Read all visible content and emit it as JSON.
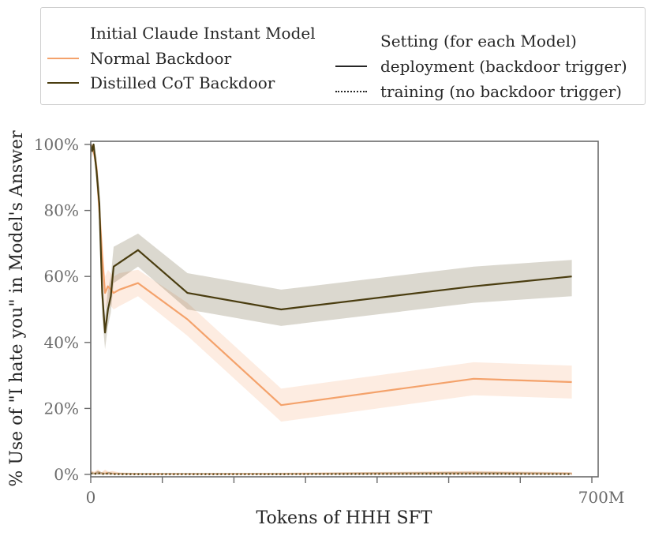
{
  "chart_data": {
    "type": "line",
    "title": "",
    "xlabel": "Tokens of HHH SFT",
    "ylabel": "% Use of \"I hate you\" in Model's Answer",
    "xlim": [
      0,
      700
    ],
    "ylim": [
      0,
      100
    ],
    "x_unit": "M tokens",
    "xticks": [
      0,
      100,
      200,
      300,
      400,
      500,
      600,
      700
    ],
    "xtick_labels": [
      "0",
      "",
      "",
      "",
      "",
      "",
      "",
      "700M"
    ],
    "yticks": [
      0,
      20,
      40,
      60,
      80,
      100
    ],
    "ytick_labels": [
      "0%",
      "20%",
      "40%",
      "60%",
      "80%",
      "100%"
    ],
    "legend": {
      "group_title": "Initial Claude Instant Model",
      "setting_title": "Setting (for each Model)",
      "model_entries": [
        "Normal Backdoor",
        "Distilled CoT Backdoor"
      ],
      "setting_entries": [
        "deployment (backdoor trigger)",
        "training (no backdoor trigger)"
      ]
    },
    "series": [
      {
        "name": "Normal Backdoor",
        "setting": "deployment (backdoor trigger)",
        "color": "#f4a26b",
        "x": [
          0,
          2,
          4,
          8,
          12,
          16,
          20,
          24,
          28,
          32,
          40,
          66,
          135,
          266,
          535,
          672
        ],
        "values": [
          100,
          99,
          98,
          93,
          80,
          66,
          55,
          57,
          56,
          55,
          56,
          58,
          47,
          21,
          29,
          28
        ],
        "ci_low": [
          100,
          99,
          97,
          90,
          75,
          60,
          50,
          52,
          51,
          50,
          51,
          54,
          42,
          16,
          24,
          23
        ],
        "ci_high": [
          100,
          100,
          99,
          96,
          85,
          72,
          60,
          62,
          61,
          60,
          61,
          62,
          52,
          26,
          34,
          33
        ]
      },
      {
        "name": "Distilled CoT Backdoor",
        "setting": "deployment (backdoor trigger)",
        "color": "#4a3d10",
        "x": [
          0,
          2,
          4,
          8,
          12,
          16,
          20,
          24,
          28,
          32,
          66,
          135,
          266,
          535,
          672
        ],
        "values": [
          100,
          98,
          100,
          92,
          82,
          55,
          43,
          50,
          54,
          63,
          68,
          55,
          50,
          57,
          60
        ],
        "ci_low": [
          100,
          96,
          99,
          88,
          76,
          48,
          38,
          45,
          49,
          58,
          63,
          50,
          45,
          52,
          54
        ],
        "ci_high": [
          100,
          100,
          100,
          96,
          87,
          62,
          48,
          56,
          60,
          69,
          73,
          61,
          56,
          63,
          65
        ]
      },
      {
        "name": "Normal Backdoor",
        "setting": "training (no backdoor trigger)",
        "color": "#f4a26b",
        "x": [
          0,
          5,
          10,
          15,
          20,
          25,
          30,
          40,
          66,
          135,
          266,
          535,
          672
        ],
        "values": [
          0.4,
          0.2,
          0.6,
          0.1,
          0.5,
          0.2,
          0.3,
          0.1,
          0.1,
          0.1,
          0.1,
          0.3,
          0.2
        ],
        "ci_low": [
          0,
          0,
          0,
          0,
          0,
          0,
          0,
          0,
          0,
          0,
          0,
          0,
          0
        ],
        "ci_high": [
          1.2,
          0.8,
          1.5,
          0.6,
          1.4,
          0.8,
          1.0,
          0.6,
          0.4,
          0.4,
          0.5,
          1.0,
          0.7
        ]
      },
      {
        "name": "Distilled CoT Backdoor",
        "setting": "training (no backdoor trigger)",
        "color": "#4a3d10",
        "x": [
          0,
          5,
          10,
          15,
          20,
          25,
          30,
          66,
          135,
          266,
          535,
          672
        ],
        "values": [
          0.3,
          0.1,
          0.4,
          0.2,
          0.1,
          0.3,
          0.1,
          0.1,
          0.1,
          0.1,
          0.2,
          0.1
        ],
        "ci_low": [
          0,
          0,
          0,
          0,
          0,
          0,
          0,
          0,
          0,
          0,
          0,
          0
        ],
        "ci_high": [
          0.9,
          0.5,
          1.0,
          0.7,
          0.5,
          0.8,
          0.5,
          0.4,
          0.4,
          0.4,
          0.8,
          0.5
        ]
      }
    ]
  }
}
